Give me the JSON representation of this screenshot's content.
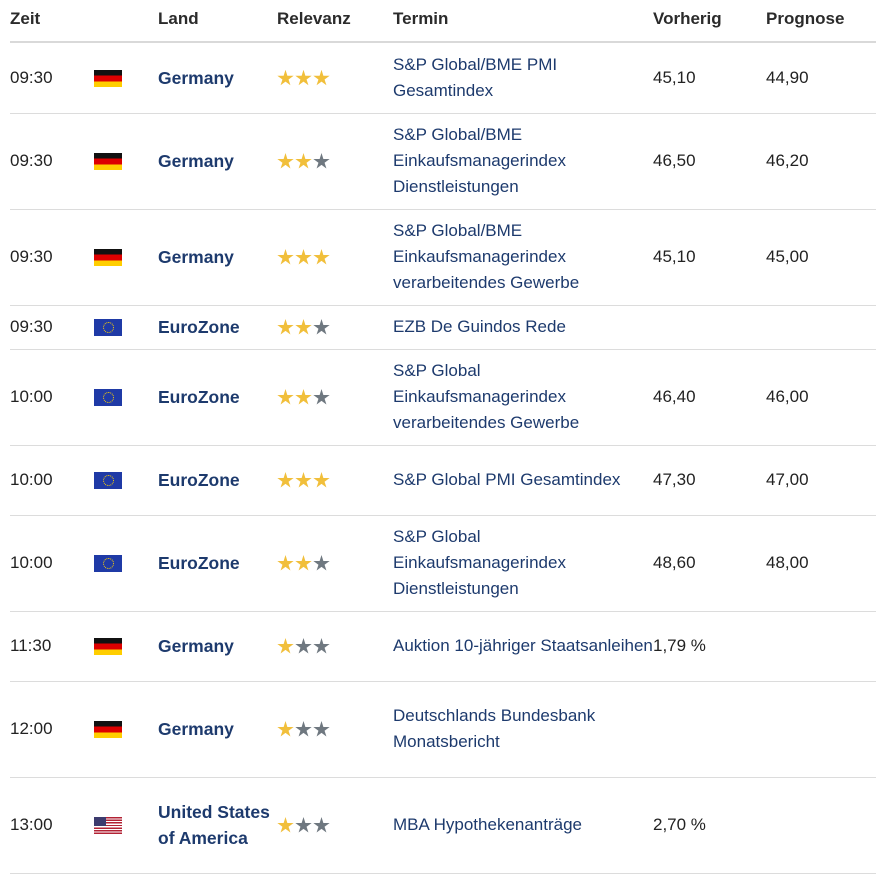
{
  "headers": {
    "time": "Zeit",
    "country": "Land",
    "relevance": "Relevanz",
    "event": "Termin",
    "previous": "Vorherig",
    "forecast": "Prognose"
  },
  "colors": {
    "star_on": "#f1bf3b",
    "star_off": "#6f7880",
    "country_text": "#1d3a6d",
    "divider": "#dcdcdc"
  },
  "rows": [
    {
      "time": "09:30",
      "flag": "flag-de-icon",
      "country": "Germany",
      "stars": 3,
      "event": "S&P Global/BME PMI Gesamtindex",
      "previous": "45,10",
      "forecast": "44,90"
    },
    {
      "time": "09:30",
      "flag": "flag-de-icon",
      "country": "Germany",
      "stars": 2,
      "event": "S&P Global/BME Einkaufsmanagerindex Dienstleistungen",
      "previous": "46,50",
      "forecast": "46,20"
    },
    {
      "time": "09:30",
      "flag": "flag-de-icon",
      "country": "Germany",
      "stars": 3,
      "event": "S&P Global/BME Einkaufsmanagerindex verarbeitendes Gewerbe",
      "previous": "45,10",
      "forecast": "45,00"
    },
    {
      "time": "09:30",
      "flag": "flag-eu-icon",
      "country": "EuroZone",
      "stars": 2,
      "event": "EZB De Guindos Rede",
      "previous": "",
      "forecast": ""
    },
    {
      "time": "10:00",
      "flag": "flag-eu-icon",
      "country": "EuroZone",
      "stars": 2,
      "event": "S&P Global Einkaufsmanagerindex verarbeitendes Gewerbe",
      "previous": "46,40",
      "forecast": "46,00"
    },
    {
      "time": "10:00",
      "flag": "flag-eu-icon",
      "country": "EuroZone",
      "stars": 3,
      "event": "S&P Global PMI Gesamtindex",
      "previous": "47,30",
      "forecast": "47,00"
    },
    {
      "time": "10:00",
      "flag": "flag-eu-icon",
      "country": "EuroZone",
      "stars": 2,
      "event": "S&P Global Einkaufsmanagerindex Dienstleistungen",
      "previous": "48,60",
      "forecast": "48,00"
    },
    {
      "time": "11:30",
      "flag": "flag-de-icon",
      "country": "Germany",
      "stars": 1,
      "event": "Auktion 10-jähriger Staatsanleihen",
      "previous": "1,79 %",
      "forecast": ""
    },
    {
      "time": "12:00",
      "flag": "flag-de-icon",
      "country": "Germany",
      "stars": 1,
      "event": "Deutschlands Bundesbank Monatsbericht",
      "previous": "",
      "forecast": ""
    },
    {
      "time": "13:00",
      "flag": "flag-us-icon",
      "country": "United States of America",
      "stars": 1,
      "event": "MBA Hypothekenanträge",
      "previous": "2,70 %",
      "forecast": ""
    }
  ]
}
